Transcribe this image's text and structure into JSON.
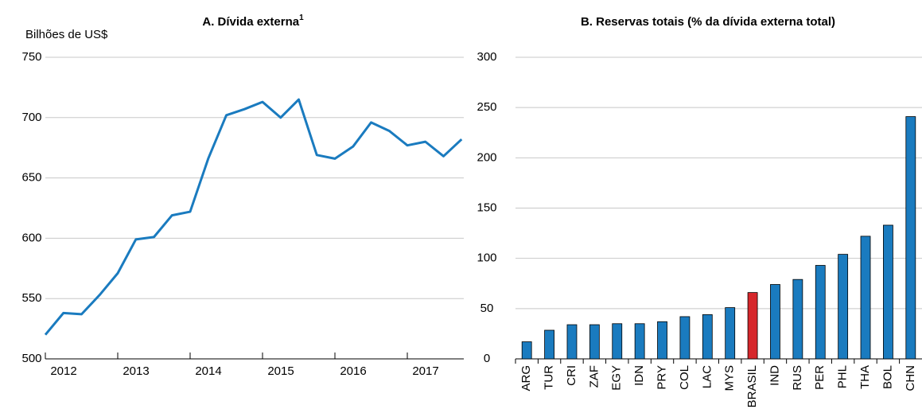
{
  "chart_data": [
    {
      "type": "line",
      "title": "A. Dívida externa",
      "title_note": "1",
      "ylabel": "Bilhões de US$",
      "x": [
        2012,
        2012.25,
        2012.5,
        2012.75,
        2013,
        2013.25,
        2013.5,
        2013.75,
        2014,
        2014.25,
        2014.5,
        2014.75,
        2015,
        2015.25,
        2015.5,
        2015.75,
        2016,
        2016.25,
        2016.5,
        2016.75,
        2017,
        2017.25,
        2017.5,
        2017.75
      ],
      "series": [
        {
          "name": "Dívida externa",
          "color": "#1a7bbf",
          "values": [
            520,
            538,
            537,
            553,
            571,
            599,
            601,
            619,
            622,
            666,
            702,
            707,
            713,
            700,
            715,
            669,
            666,
            676,
            696,
            689,
            677,
            680,
            668,
            682
          ]
        }
      ],
      "xlim": [
        2012,
        2017.78
      ],
      "xticks": [
        2012,
        2013,
        2014,
        2015,
        2016,
        2017
      ],
      "ylim": [
        500,
        750
      ],
      "yticks": [
        500,
        550,
        600,
        650,
        700,
        750
      ],
      "grid": true
    },
    {
      "type": "bar",
      "title": "B. Reservas totais (% da dívida externa total)",
      "categories": [
        "ARG",
        "TUR",
        "CRI",
        "ZAF",
        "EGY",
        "IDN",
        "PRY",
        "COL",
        "LAC",
        "MYS",
        "BRASIL",
        "IND",
        "RUS",
        "PER",
        "PHL",
        "THA",
        "BOL",
        "CHN"
      ],
      "values": [
        17,
        28.5,
        34,
        34,
        35,
        35,
        37,
        42,
        44,
        51,
        66,
        74,
        79,
        93,
        104,
        122,
        133,
        241
      ],
      "colors": [
        "#1a7bbf",
        "#1a7bbf",
        "#1a7bbf",
        "#1a7bbf",
        "#1a7bbf",
        "#1a7bbf",
        "#1a7bbf",
        "#1a7bbf",
        "#1a7bbf",
        "#1a7bbf",
        "#d6272b",
        "#1a7bbf",
        "#1a7bbf",
        "#1a7bbf",
        "#1a7bbf",
        "#1a7bbf",
        "#1a7bbf",
        "#1a7bbf"
      ],
      "ylim": [
        0,
        300
      ],
      "yticks": [
        0,
        50,
        100,
        150,
        200,
        250,
        300
      ],
      "grid": true
    }
  ]
}
